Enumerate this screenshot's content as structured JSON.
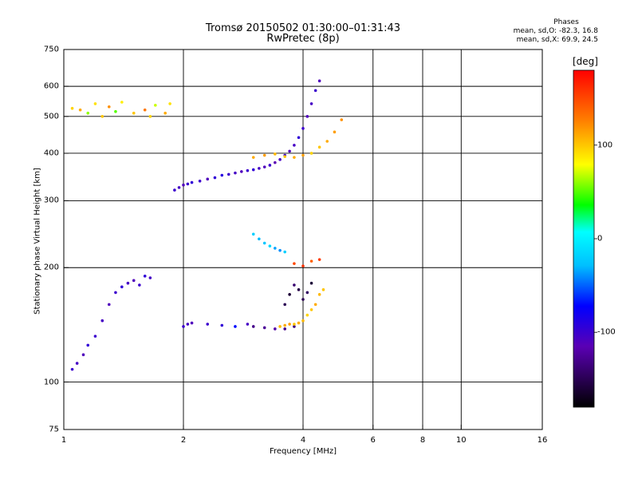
{
  "chart_data": {
    "type": "scatter",
    "title": "Tromsø 20150502 01:30:00–01:31:43",
    "subtitle": "RwPretec (8p)",
    "xlabel": "Frequency [MHz]",
    "ylabel": "Stationary phase Virtual Height [km]",
    "x_scale": "log2",
    "y_scale": "log",
    "xlim": [
      1,
      16
    ],
    "ylim": [
      75,
      750
    ],
    "x_ticks": [
      1,
      2,
      4,
      6,
      8,
      10,
      16
    ],
    "x_tick_labels": [
      "1",
      "2",
      "4",
      "6",
      "8",
      "10",
      "16"
    ],
    "y_ticks": [
      75,
      100,
      200,
      300,
      400,
      500,
      600,
      750
    ],
    "y_tick_labels": [
      "75",
      "100",
      "200",
      "300",
      "400",
      "500",
      "600",
      "750"
    ],
    "grid": true,
    "phase_stats": {
      "title": "Phases",
      "line_o": "mean, sd,O: -82.3, 16.8",
      "line_x": "mean, sd,X:  69.9, 24.5"
    },
    "colorbar": {
      "unit": "[deg]",
      "range": [
        -180,
        180
      ],
      "ticks": [
        100,
        0,
        -100
      ],
      "tick_labels": [
        "100",
        "0",
        "-100"
      ]
    },
    "series": [
      {
        "x": [
          1.05,
          1.1,
          1.15,
          1.2,
          1.25,
          1.3,
          1.35,
          1.4,
          1.5,
          1.6,
          1.65,
          1.7,
          1.8,
          1.85
        ],
        "y": [
          525,
          520,
          510,
          540,
          500,
          530,
          515,
          545,
          510,
          520,
          500,
          535,
          510,
          540
        ],
        "phase": [
          95,
          110,
          60,
          90,
          100,
          120,
          50,
          85,
          100,
          130,
          95,
          70,
          110,
          90
        ]
      },
      {
        "x": [
          1.9,
          1.95,
          2.0,
          2.05,
          2.1,
          2.2,
          2.3,
          2.4,
          2.5,
          2.6,
          2.7,
          2.8,
          2.9,
          3.0,
          3.1,
          3.2,
          3.3,
          3.4,
          3.5,
          3.6,
          3.7,
          3.8,
          3.9,
          4.0,
          4.1,
          4.2,
          4.3,
          4.4
        ],
        "y": [
          320,
          325,
          330,
          332,
          335,
          338,
          342,
          345,
          350,
          352,
          355,
          358,
          360,
          362,
          365,
          368,
          372,
          378,
          385,
          395,
          405,
          420,
          440,
          465,
          500,
          540,
          585,
          620
        ],
        "phase": [
          -100,
          -105,
          -110,
          -100,
          -95,
          -100,
          -110,
          -95,
          -90,
          -100,
          -105,
          -110,
          -100,
          -95,
          -105,
          -110,
          -100,
          -115,
          -105,
          -100,
          -110,
          -105,
          -95,
          -100,
          -110,
          -105,
          -100,
          -110
        ]
      },
      {
        "x": [
          3.0,
          3.2,
          3.4,
          3.6,
          3.8,
          4.0,
          4.2,
          4.4,
          4.6,
          4.8,
          5.0
        ],
        "y": [
          390,
          395,
          398,
          392,
          390,
          395,
          400,
          415,
          430,
          455,
          490
        ],
        "phase": [
          110,
          115,
          105,
          100,
          110,
          115,
          95,
          100,
          110,
          115,
          120
        ]
      },
      {
        "x": [
          1.05,
          1.08,
          1.12,
          1.15,
          1.2,
          1.25,
          1.3,
          1.35,
          1.4,
          1.45,
          1.5,
          1.55,
          1.6,
          1.65
        ],
        "y": [
          108,
          112,
          118,
          125,
          132,
          145,
          160,
          172,
          178,
          182,
          185,
          180,
          190,
          188
        ],
        "phase": [
          -100,
          -105,
          -110,
          -95,
          -100,
          -105,
          -110,
          -100,
          -95,
          -105,
          -110,
          -100,
          -95,
          -105
        ]
      },
      {
        "x": [
          2.0,
          2.05,
          2.1,
          2.3,
          2.5,
          2.7,
          2.9,
          3.0,
          3.2,
          3.4,
          3.6,
          3.8
        ],
        "y": [
          140,
          142,
          143,
          142,
          141,
          140,
          142,
          140,
          139,
          138,
          138,
          140
        ],
        "phase": [
          -100,
          -105,
          -110,
          -100,
          -95,
          -70,
          -105,
          -130,
          -125,
          -120,
          -130,
          -135
        ]
      },
      {
        "x": [
          3.5,
          3.6,
          3.7,
          3.8,
          3.9,
          4.0,
          4.1,
          4.2,
          4.3,
          4.4,
          4.5
        ],
        "y": [
          140,
          141,
          142,
          142,
          143,
          145,
          150,
          155,
          160,
          170,
          175
        ],
        "phase": [
          105,
          110,
          115,
          100,
          110,
          105,
          95,
          100,
          110,
          105,
          100
        ]
      },
      {
        "x": [
          3.0,
          3.1,
          3.2,
          3.3,
          3.4,
          3.5,
          3.6
        ],
        "y": [
          245,
          238,
          232,
          228,
          225,
          222,
          220
        ],
        "phase": [
          -20,
          -30,
          -25,
          -15,
          -35,
          -40,
          -20
        ]
      },
      {
        "x": [
          3.6,
          3.7,
          3.8,
          3.9,
          4.0,
          4.1,
          4.2
        ],
        "y": [
          160,
          170,
          180,
          175,
          165,
          172,
          182
        ],
        "phase": [
          -150,
          -160,
          -140,
          -155,
          -150,
          -145,
          -160
        ]
      },
      {
        "x": [
          3.8,
          4.0,
          4.2,
          4.4
        ],
        "y": [
          205,
          202,
          208,
          210
        ],
        "phase": [
          150,
          160,
          140,
          155
        ]
      }
    ]
  }
}
